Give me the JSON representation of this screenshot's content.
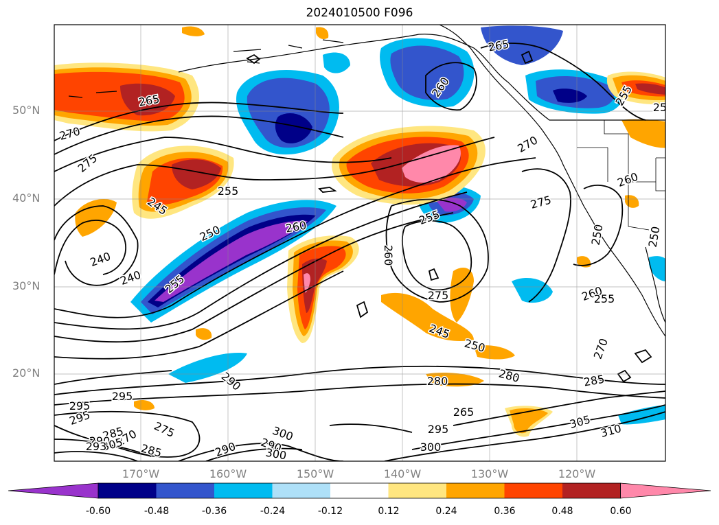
{
  "title": "2024010500 F096",
  "map": {
    "region": "North-East Pacific / Western North America",
    "lon_range": [
      -179,
      -109
    ],
    "lat_range": [
      10,
      60
    ],
    "latitude_labels": [
      "50°N",
      "40°N",
      "30°N",
      "20°N"
    ],
    "longitude_labels": [
      "170°W",
      "160°W",
      "150°W",
      "140°W",
      "130°W",
      "120°W"
    ],
    "gridlines": true,
    "contour_variable": "geopotential height / thickness (black contours)",
    "contour_labels": [
      "265",
      "270",
      "275",
      "245",
      "255",
      "250",
      "240",
      "240",
      "255",
      "260",
      "260",
      "265",
      "260",
      "270",
      "275",
      "255",
      "260",
      "250",
      "275",
      "260",
      "255",
      "250",
      "245",
      "255",
      "255",
      "250",
      "270",
      "265",
      "280",
      "285",
      "265",
      "290",
      "295",
      "300",
      "305",
      "310",
      "300",
      "290",
      "285",
      "290",
      "280",
      "295",
      "270",
      "295",
      "295",
      "290",
      "300",
      "305",
      "293",
      "275",
      "285"
    ],
    "shading_colors": {
      "purple": "#9933cc",
      "navy": "#000088",
      "royal_blue": "#3355cc",
      "deep_sky_blue": "#00bbf0",
      "light_blue": "#aee0f8",
      "light_yellow": "#ffe680",
      "orange": "#ffa500",
      "orange_red": "#ff4400",
      "firebrick": "#b22222",
      "pink": "#ff88aa"
    }
  },
  "colorbar": {
    "ticks": [
      "-0.60",
      "-0.48",
      "-0.36",
      "-0.24",
      "-0.12",
      "0.12",
      "0.24",
      "0.36",
      "0.48",
      "0.60"
    ],
    "colors": [
      "#9933cc",
      "#000088",
      "#3355cc",
      "#00bbf0",
      "#aee0f8",
      "#ffffff",
      "#ffe680",
      "#ffa500",
      "#ff4400",
      "#b22222",
      "#ff88aa"
    ],
    "extend": "both"
  }
}
